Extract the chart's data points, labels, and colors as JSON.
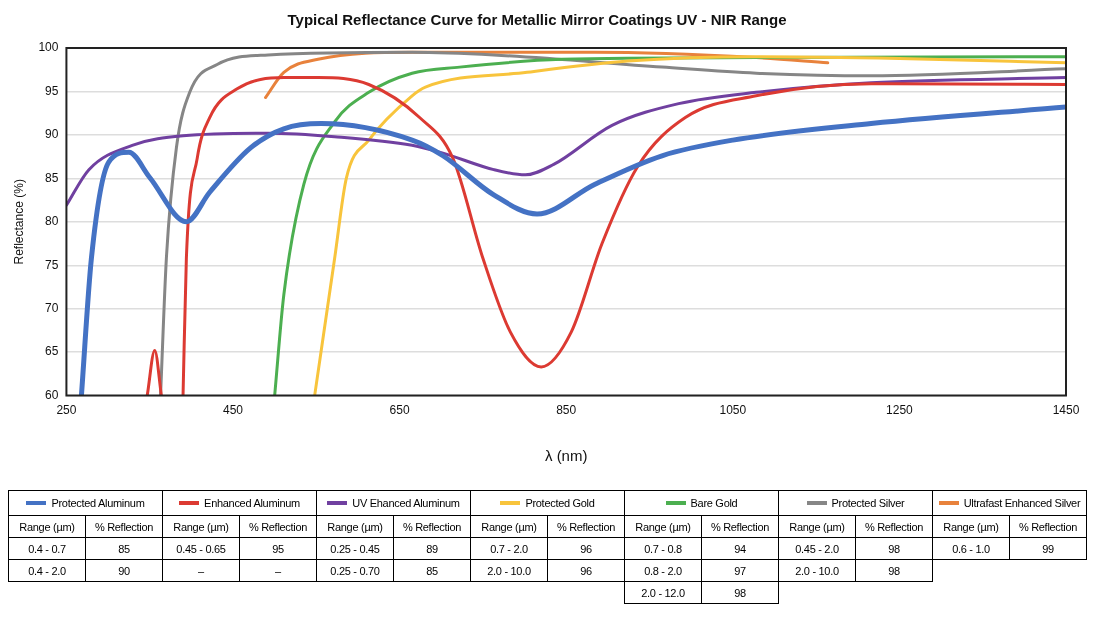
{
  "chart_data": {
    "type": "line",
    "title": "Typical Reflectance Curve for Metallic Mirror Coatings UV - NIR Range",
    "xlabel": "λ (nm)",
    "ylabel": "Reflectance (%)",
    "xlim": [
      250,
      1450
    ],
    "xticks": [
      250,
      450,
      650,
      850,
      1050,
      1250,
      1450
    ],
    "ylim": [
      60,
      100
    ],
    "yticks": [
      60,
      65,
      70,
      75,
      80,
      85,
      90,
      95,
      100
    ],
    "grid": "y",
    "legend": "bottom",
    "marker": "none",
    "line_style": "solid",
    "series": [
      {
        "name": "Protected Aluminum",
        "color": "#4472c4",
        "x": [
          268,
          280,
          301,
          325,
          350,
          394,
          422,
          471,
          511,
          556,
          665,
          702,
          763,
          815,
          884,
          965,
          1050,
          1216,
          1450
        ],
        "values": [
          60,
          75.8,
          86.9,
          88.0,
          85.1,
          80.0,
          83.4,
          88.5,
          90.7,
          91.3,
          89.4,
          87.6,
          83.1,
          80.9,
          84.3,
          87.6,
          89.4,
          91.3,
          93.2
        ]
      },
      {
        "name": "Enhanced Aluminum",
        "color": "#dc3a32",
        "x": [
          347,
          356,
          364,
          377,
          390,
          394,
          407,
          422,
          455,
          511,
          552,
          613,
          674,
          714,
          750,
          783,
          820,
          856,
          893,
          936,
          993,
          1078,
          1216,
          1450
        ],
        "values": [
          60,
          65.2,
          60,
          null,
          60,
          75.8,
          87.3,
          92.0,
          95.3,
          96.6,
          96.6,
          95.8,
          92.0,
          87.3,
          75.8,
          67.3,
          63.3,
          67.3,
          77.5,
          86.4,
          92.0,
          94.5,
          95.9,
          95.8
        ]
      },
      {
        "name": "UV Ehanced Aluminum",
        "color": "#7040a0",
        "x": [
          250,
          277,
          329,
          390,
          492,
          572,
          665,
          702,
          763,
          801,
          835,
          905,
          985,
          1078,
          1216,
          1450
        ],
        "values": [
          81.9,
          86.0,
          88.8,
          89.9,
          90.2,
          89.8,
          88.8,
          87.9,
          86.0,
          85.4,
          86.6,
          91.1,
          93.6,
          94.9,
          96.0,
          96.6
        ]
      },
      {
        "name": "Protected Gold",
        "color": "#f8c43c",
        "x": [
          548,
          572,
          586,
          613,
          665,
          681,
          803,
          924,
          1078,
          1250,
          1450
        ],
        "values": [
          60,
          75.8,
          85.0,
          89.4,
          94.5,
          95.5,
          97.2,
          98.5,
          99.0,
          98.8,
          98.3
        ]
      },
      {
        "name": "Bare Gold",
        "color": "#4caf50",
        "x": [
          500,
          511,
          535,
          572,
          613,
          665,
          722,
          844,
          1078,
          1450
        ],
        "values": [
          60,
          71.6,
          84.3,
          91.5,
          94.9,
          97.1,
          97.8,
          98.7,
          98.9,
          99.0
        ]
      },
      {
        "name": "Protected Silver",
        "color": "#868686",
        "x": [
          363,
          370,
          382,
          398,
          431,
          492,
          665,
          763,
          965,
          1078,
          1216,
          1450
        ],
        "values": [
          60,
          75.8,
          88.5,
          94.9,
          98.1,
          99.2,
          99.5,
          99.2,
          97.8,
          97.1,
          96.8,
          97.6
        ]
      },
      {
        "name": "Ultrafast Enhanced Silver",
        "color": "#e8823c",
        "x": [
          489,
          511,
          552,
          665,
          884,
          1078,
          1164
        ],
        "values": [
          94.3,
          97.2,
          98.7,
          99.5,
          99.5,
          98.9,
          98.3
        ]
      }
    ],
    "annotations": [
      "Range (µm)",
      "% Reflection",
      "0.4 - 0.7",
      "85",
      "0.4 - 2.0",
      "90",
      "0.45 - 0.65",
      "95",
      "–",
      "–",
      "0.25 - 0.45",
      "89",
      "0.25 - 0.70",
      "85",
      "0.7 - 2.0",
      "96",
      "2.0 - 10.0",
      "96",
      "0.7 - 0.8",
      "94",
      "0.8 - 2.0",
      "97",
      "2.0 - 12.0",
      "98",
      "0.45 - 2.0",
      "98",
      "2.0 - 10.0",
      "98",
      "0.6 - 1.0",
      "99"
    ]
  }
}
